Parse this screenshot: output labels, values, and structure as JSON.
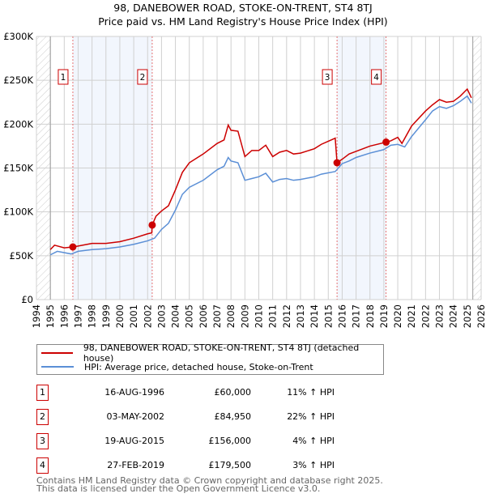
{
  "title_line1": "98, DANEBOWER ROAD, STOKE-ON-TRENT, ST4 8TJ",
  "title_line2": "Price paid vs. HM Land Registry's House Price Index (HPI)",
  "chart_data": {
    "type": "line",
    "title": "98, DANEBOWER ROAD, STOKE-ON-TRENT, ST4 8TJ — Price paid vs. HM Land Registry's House Price Index (HPI)",
    "xlim": [
      1994,
      2026
    ],
    "ylim": [
      0,
      300000
    ],
    "x_ticks": [
      "1994",
      "1995",
      "1996",
      "1997",
      "1998",
      "1999",
      "2000",
      "2001",
      "2002",
      "2003",
      "2004",
      "2005",
      "2006",
      "2007",
      "2008",
      "2009",
      "2010",
      "2011",
      "2012",
      "2013",
      "2014",
      "2015",
      "2016",
      "2017",
      "2018",
      "2019",
      "2020",
      "2021",
      "2022",
      "2023",
      "2024",
      "2025",
      "2026"
    ],
    "y_ticks": [
      {
        "v": 0,
        "label": "£0"
      },
      {
        "v": 50000,
        "label": "£50K"
      },
      {
        "v": 100000,
        "label": "£100K"
      },
      {
        "v": 150000,
        "label": "£150K"
      },
      {
        "v": 200000,
        "label": "£200K"
      },
      {
        "v": 250000,
        "label": "£250K"
      },
      {
        "v": 300000,
        "label": "£300K"
      }
    ],
    "grid": true,
    "hatched_ranges": [
      [
        1994,
        1995
      ],
      [
        2025.4,
        2026
      ]
    ],
    "shaded_ranges": [
      [
        1996.62,
        2002.33
      ],
      [
        2015.63,
        2019.16
      ]
    ],
    "series": [
      {
        "name": "98, DANEBOWER ROAD, STOKE-ON-TRENT, ST4 8TJ (detached house)",
        "color": "#cc0000",
        "points": [
          [
            1995,
            57000
          ],
          [
            1995.3,
            62000
          ],
          [
            1996,
            59000
          ],
          [
            1996.62,
            60000
          ],
          [
            1997,
            61000
          ],
          [
            1998,
            64000
          ],
          [
            1999,
            64000
          ],
          [
            2000,
            66000
          ],
          [
            2001,
            70000
          ],
          [
            2002,
            75000
          ],
          [
            2002.3,
            76000
          ],
          [
            2002.33,
            84950
          ],
          [
            2002.6,
            95000
          ],
          [
            2003,
            101000
          ],
          [
            2003.5,
            107000
          ],
          [
            2004,
            125000
          ],
          [
            2004.5,
            145000
          ],
          [
            2005,
            156000
          ],
          [
            2006,
            166000
          ],
          [
            2007,
            178000
          ],
          [
            2007.5,
            182000
          ],
          [
            2007.8,
            199000
          ],
          [
            2008,
            193000
          ],
          [
            2008.5,
            192000
          ],
          [
            2009,
            163000
          ],
          [
            2009.5,
            170000
          ],
          [
            2010,
            170000
          ],
          [
            2010.5,
            176000
          ],
          [
            2011,
            163000
          ],
          [
            2011.5,
            168000
          ],
          [
            2012,
            170000
          ],
          [
            2012.5,
            166000
          ],
          [
            2013,
            167000
          ],
          [
            2014,
            172000
          ],
          [
            2014.5,
            177000
          ],
          [
            2015.5,
            184000
          ],
          [
            2015.63,
            156000
          ],
          [
            2016,
            160000
          ],
          [
            2016.5,
            166000
          ],
          [
            2017,
            169000
          ],
          [
            2018,
            175000
          ],
          [
            2019.16,
            179500
          ],
          [
            2019.5,
            181000
          ],
          [
            2020,
            185000
          ],
          [
            2020.3,
            178000
          ],
          [
            2021,
            198000
          ],
          [
            2022,
            215000
          ],
          [
            2022.5,
            222000
          ],
          [
            2023,
            228000
          ],
          [
            2023.5,
            225000
          ],
          [
            2024,
            226000
          ],
          [
            2024.5,
            232000
          ],
          [
            2025,
            240000
          ],
          [
            2025.3,
            230000
          ]
        ]
      },
      {
        "name": "HPI: Average price, detached house, Stoke-on-Trent",
        "color": "#5b8fd6",
        "points": [
          [
            1995,
            51000
          ],
          [
            1995.5,
            55000
          ],
          [
            1996.5,
            52000
          ],
          [
            1997,
            55000
          ],
          [
            1998,
            57000
          ],
          [
            1999,
            58000
          ],
          [
            2000,
            60000
          ],
          [
            2001,
            63000
          ],
          [
            2002,
            67000
          ],
          [
            2002.5,
            70000
          ],
          [
            2003,
            80000
          ],
          [
            2003.5,
            87000
          ],
          [
            2004,
            102000
          ],
          [
            2004.5,
            120000
          ],
          [
            2005,
            128000
          ],
          [
            2006,
            136000
          ],
          [
            2007,
            148000
          ],
          [
            2007.5,
            152000
          ],
          [
            2007.8,
            162000
          ],
          [
            2008,
            158000
          ],
          [
            2008.5,
            156000
          ],
          [
            2009,
            136000
          ],
          [
            2009.5,
            138000
          ],
          [
            2010,
            140000
          ],
          [
            2010.5,
            144000
          ],
          [
            2011,
            134000
          ],
          [
            2011.5,
            137000
          ],
          [
            2012,
            138000
          ],
          [
            2012.5,
            136000
          ],
          [
            2013,
            137000
          ],
          [
            2014,
            140000
          ],
          [
            2014.5,
            143000
          ],
          [
            2015.5,
            146000
          ],
          [
            2016,
            155000
          ],
          [
            2016.5,
            158000
          ],
          [
            2017,
            162000
          ],
          [
            2018,
            167000
          ],
          [
            2019,
            171000
          ],
          [
            2019.5,
            176000
          ],
          [
            2020,
            177000
          ],
          [
            2020.5,
            174000
          ],
          [
            2021,
            186000
          ],
          [
            2022,
            205000
          ],
          [
            2022.5,
            215000
          ],
          [
            2023,
            220000
          ],
          [
            2023.5,
            218000
          ],
          [
            2024,
            221000
          ],
          [
            2024.5,
            226000
          ],
          [
            2025,
            232000
          ],
          [
            2025.3,
            224000
          ]
        ]
      }
    ],
    "sales": [
      {
        "id": "1",
        "x": 1996.62,
        "y": 60000
      },
      {
        "id": "2",
        "x": 2002.33,
        "y": 84950
      },
      {
        "id": "3",
        "x": 2015.63,
        "y": 156000
      },
      {
        "id": "4",
        "x": 2019.16,
        "y": 179500
      }
    ]
  },
  "legend": [
    {
      "label": "98, DANEBOWER ROAD, STOKE-ON-TRENT, ST4 8TJ (detached house)",
      "color": "#cc0000"
    },
    {
      "label": "HPI: Average price, detached house, Stoke-on-Trent",
      "color": "#5b8fd6"
    }
  ],
  "table": [
    {
      "num": "1",
      "date": "16-AUG-1996",
      "price": "£60,000",
      "pct": "11% ↑ HPI"
    },
    {
      "num": "2",
      "date": "03-MAY-2002",
      "price": "£84,950",
      "pct": "22% ↑ HPI"
    },
    {
      "num": "3",
      "date": "19-AUG-2015",
      "price": "£156,000",
      "pct": "4% ↑ HPI"
    },
    {
      "num": "4",
      "date": "27-FEB-2019",
      "price": "£179,500",
      "pct": "3% ↑ HPI"
    }
  ],
  "footer_line1": "Contains HM Land Registry data © Crown copyright and database right 2025.",
  "footer_line2": "This data is licensed under the Open Government Licence v3.0."
}
